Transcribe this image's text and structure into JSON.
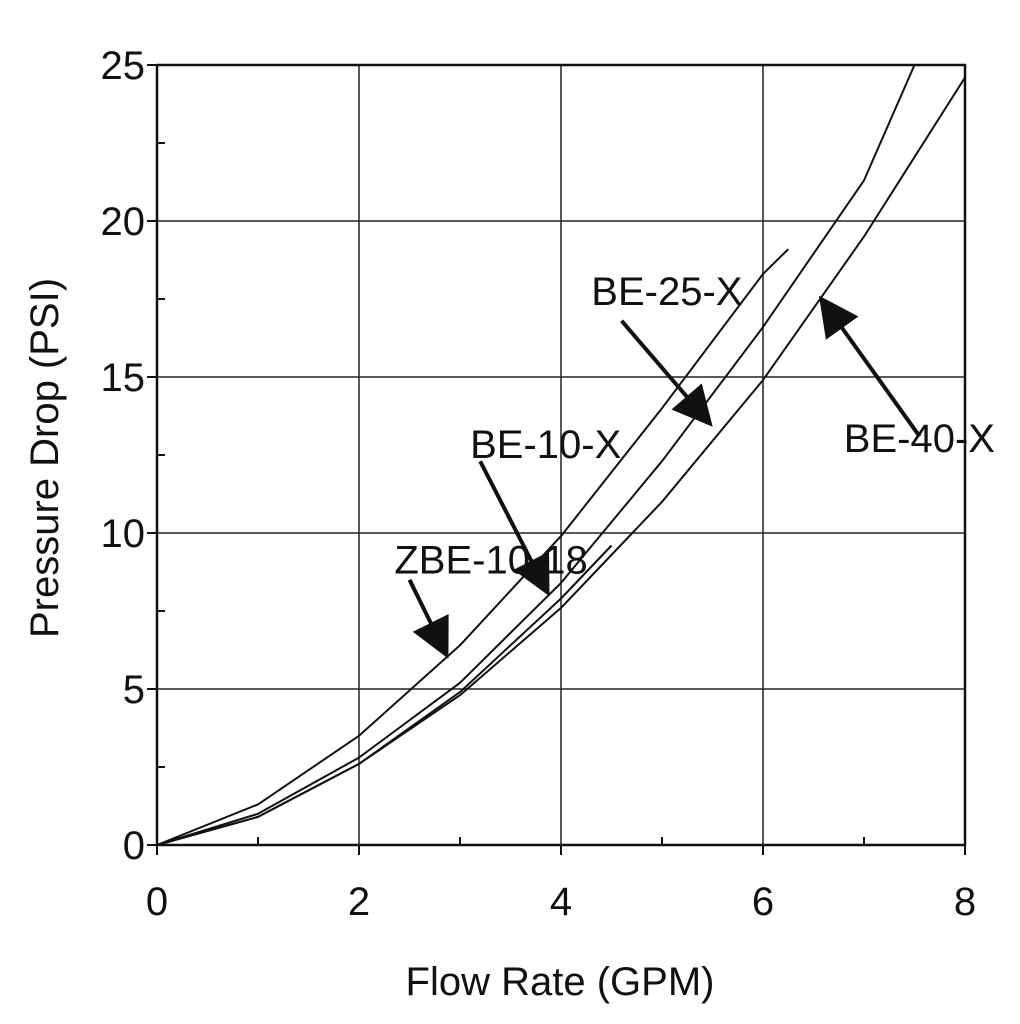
{
  "chart_data": {
    "type": "line",
    "title": "",
    "xlabel": "Flow Rate (GPM)",
    "ylabel": "Pressure Drop (PSI)",
    "xlim": [
      0,
      8
    ],
    "ylim": [
      0,
      25
    ],
    "x_ticks": [
      "0",
      "2",
      "4",
      "6",
      "8"
    ],
    "y_ticks": [
      "0",
      "5",
      "10",
      "15",
      "20",
      "25"
    ],
    "grid": true,
    "series": [
      {
        "name": "BE-25-X",
        "x": [
          0,
          1,
          2,
          3,
          4,
          5,
          6,
          6.25
        ],
        "y": [
          0,
          1.3,
          3.5,
          6.4,
          9.9,
          14.0,
          18.3,
          19.1
        ]
      },
      {
        "name": "BE-10-X",
        "x": [
          0,
          1,
          2,
          3,
          4,
          5,
          6,
          7,
          7.5
        ],
        "y": [
          0,
          1.0,
          2.8,
          5.2,
          8.4,
          12.3,
          16.6,
          21.3,
          25.0
        ]
      },
      {
        "name": "ZBE-10-18",
        "x": [
          0,
          1,
          2,
          3,
          4,
          4.5
        ],
        "y": [
          0,
          0.9,
          2.6,
          4.9,
          7.9,
          9.6
        ]
      },
      {
        "name": "BE-40-X",
        "x": [
          0,
          1,
          2,
          3,
          4,
          5,
          6,
          7,
          8
        ],
        "y": [
          0,
          0.9,
          2.6,
          4.8,
          7.6,
          11.0,
          14.9,
          19.5,
          24.6
        ]
      }
    ],
    "annotations": [
      {
        "text": "BE-25-X",
        "target": "BE-25-X",
        "text_x": 4.3,
        "text_y": 17.3,
        "arrow_from": [
          4.6,
          16.8
        ],
        "arrow_to": [
          5.45,
          13.6
        ]
      },
      {
        "text": "BE-10-X",
        "target": "BE-10-X",
        "text_x": 3.1,
        "text_y": 12.4,
        "arrow_from": [
          3.2,
          12.3
        ],
        "arrow_to": [
          3.85,
          8.2
        ]
      },
      {
        "text": "ZBE-10-18",
        "target": "ZBE-10-18",
        "text_x": 2.35,
        "text_y": 8.7,
        "arrow_from": [
          2.5,
          8.5
        ],
        "arrow_to": [
          2.85,
          6.2
        ]
      },
      {
        "text": "BE-40-X",
        "target": "BE-40-X",
        "text_x": 6.8,
        "text_y": 12.6,
        "arrow_from": [
          7.55,
          13.1
        ],
        "arrow_to": [
          6.6,
          17.4
        ]
      }
    ]
  }
}
